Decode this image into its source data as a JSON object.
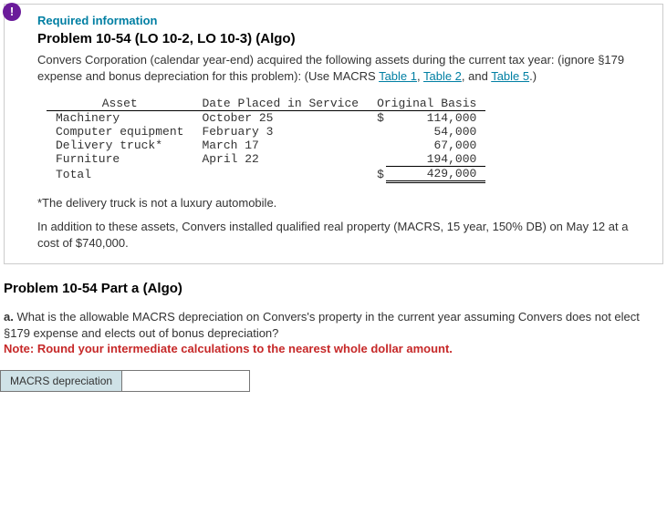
{
  "badge": "!",
  "required_label": "Required information",
  "problem_title": "Problem 10-54 (LO 10-2, LO 10-3) (Algo)",
  "intro_pre": "Convers Corporation (calendar year-end) acquired the following assets during the current tax year: (ignore §179 expense and bonus depreciation for this problem): (Use MACRS ",
  "link1": "Table 1",
  "intro_mid1": ", ",
  "link2": "Table 2",
  "intro_mid2": ", and ",
  "link3": "Table 5",
  "intro_post": ".)",
  "table": {
    "head_asset": "Asset",
    "head_date": "Date Placed in Service",
    "head_basis": "Original Basis",
    "rows": [
      {
        "asset": "Machinery",
        "date": "October 25",
        "dollar": "$",
        "basis": "114,000"
      },
      {
        "asset": "Computer equipment",
        "date": "February 3",
        "dollar": "",
        "basis": "54,000"
      },
      {
        "asset": "Delivery truck*",
        "date": "March 17",
        "dollar": "",
        "basis": "67,000"
      },
      {
        "asset": "Furniture",
        "date": "April 22",
        "dollar": "",
        "basis": "194,000"
      }
    ],
    "total_label": "Total",
    "total_dollar": "$",
    "total_basis": "429,000"
  },
  "footnote": "*The delivery truck is not a luxury automobile.",
  "addl": "In addition to these assets, Convers installed qualified real property (MACRS, 15 year, 150% DB) on May 12 at a cost of $740,000.",
  "part_title": "Problem 10-54 Part a (Algo)",
  "q_lead": "a.",
  "q_text": " What is the allowable MACRS depreciation on Convers's property in the current year assuming Convers does not elect §179 expense and elects out of bonus depreciation?",
  "note": "Note: Round your intermediate calculations to the nearest whole dollar amount.",
  "answer_label": "MACRS depreciation"
}
